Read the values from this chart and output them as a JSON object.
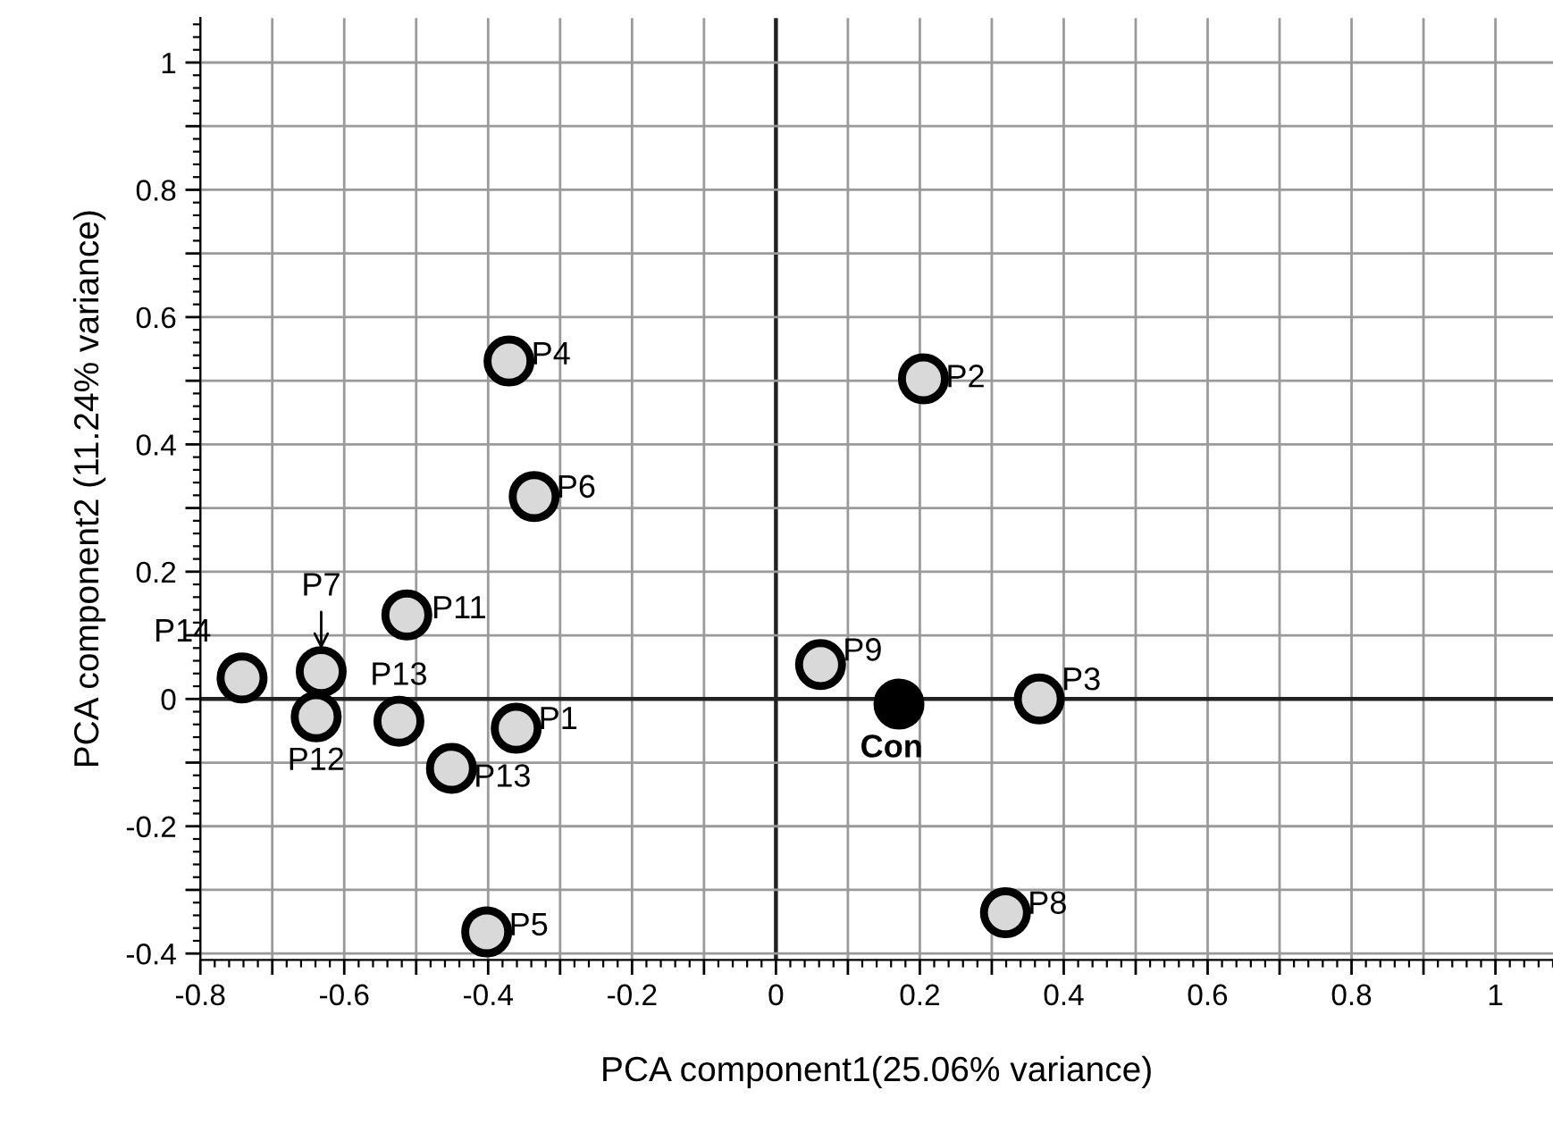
{
  "chart_data": {
    "type": "scatter",
    "xlabel": "PCA component1(25.06% variance)",
    "ylabel": "PCA component2 (11.24% variance)",
    "series": [
      {
        "color": "#d9d9d9",
        "x": [
          -0.742,
          -0.632,
          -0.639,
          -0.513,
          -0.524,
          -0.451,
          -0.361,
          -0.402,
          -0.371,
          -0.336,
          0.205,
          0.062,
          0.366,
          0.319
        ],
        "values": [
          0.033,
          0.043,
          -0.028,
          0.132,
          -0.035,
          -0.109,
          -0.046,
          -0.366,
          0.531,
          0.318,
          0.503,
          0.054,
          0.0,
          -0.336
        ]
      },
      {
        "color": "#000000",
        "x": [
          0.171
        ],
        "values": [
          -0.008
        ]
      }
    ],
    "annotations": [
      {
        "text": "P14",
        "x": -0.742,
        "y": 0.033
      },
      {
        "text": "P7",
        "x": -0.632,
        "y": 0.043
      },
      {
        "text": "P12",
        "x": -0.639,
        "y": -0.028
      },
      {
        "text": "P11",
        "x": -0.513,
        "y": 0.132
      },
      {
        "text": "P13",
        "x": -0.524,
        "y": -0.035
      },
      {
        "text": "P13",
        "x": -0.451,
        "y": -0.109
      },
      {
        "text": "P1",
        "x": -0.361,
        "y": -0.046
      },
      {
        "text": "P5",
        "x": -0.402,
        "y": -0.366
      },
      {
        "text": "P4",
        "x": -0.371,
        "y": 0.531
      },
      {
        "text": "P6",
        "x": -0.336,
        "y": 0.318
      },
      {
        "text": "P2",
        "x": 0.205,
        "y": 0.503
      },
      {
        "text": "P9",
        "x": 0.062,
        "y": 0.054
      },
      {
        "text": "P3",
        "x": 0.366,
        "y": 0.0
      },
      {
        "text": "P8",
        "x": 0.319,
        "y": -0.336
      },
      {
        "text": "Con",
        "x": 0.171,
        "y": -0.008
      }
    ],
    "xlim": [
      -0.8,
      1.08
    ],
    "ylim": [
      -0.41,
      1.07
    ],
    "xticks": [
      -0.8,
      {
        "value": -0.7,
        "label": null
      },
      -0.6,
      {
        "value": -0.5,
        "label": null
      },
      -0.4,
      {
        "value": -0.3,
        "label": null
      },
      -0.2,
      {
        "value": -0.1,
        "label": null
      },
      0,
      {
        "value": 0.1,
        "label": null
      },
      0.2,
      {
        "value": 0.3,
        "label": null
      },
      0.4,
      {
        "value": 0.5,
        "label": null
      },
      0.6,
      {
        "value": 0.7,
        "label": null
      },
      0.8,
      {
        "value": 0.9,
        "label": null
      },
      1
    ],
    "yticks": [
      -0.4,
      {
        "value": -0.3,
        "label": null
      },
      -0.2,
      {
        "value": -0.1,
        "label": null
      },
      0,
      {
        "value": 0.1,
        "label": null
      },
      0.2,
      {
        "value": 0.3,
        "label": null
      },
      0.4,
      {
        "value": 0.5,
        "label": null
      },
      0.6,
      {
        "value": 0.7,
        "label": null
      },
      0.8,
      {
        "value": 0.9,
        "label": null
      },
      1
    ],
    "grid": true,
    "marker": "circle",
    "legend": false
  }
}
